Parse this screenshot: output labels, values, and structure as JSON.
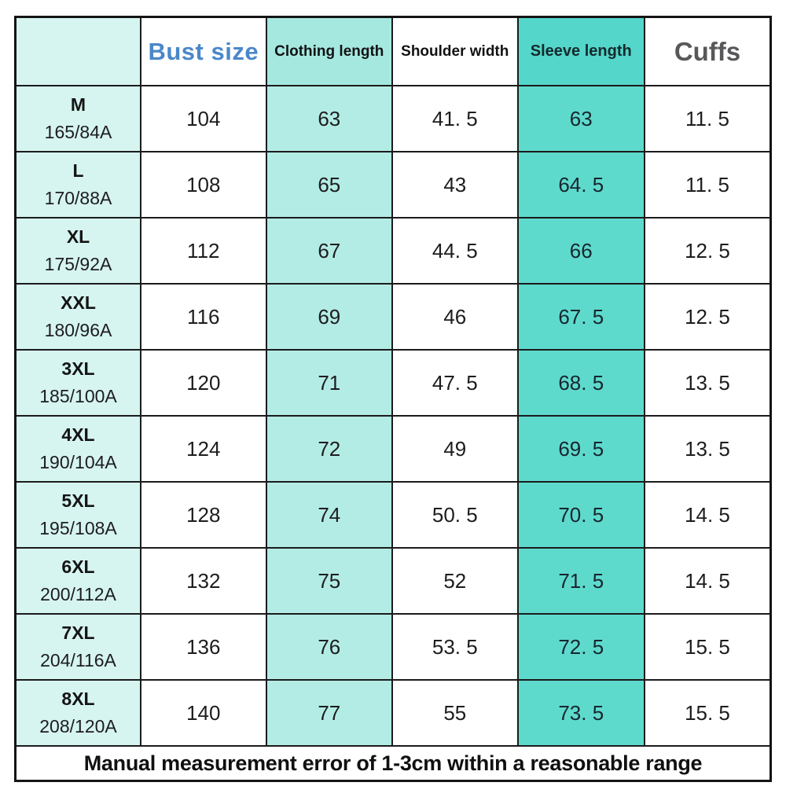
{
  "chart_data": {
    "type": "table",
    "title": "Garment size chart",
    "columns": [
      "",
      "Bust size",
      "Clothing length",
      "Shoulder width",
      "Sleeve length",
      "Cuffs"
    ],
    "rows": [
      [
        "M 165/84A",
        104,
        63,
        41.5,
        63,
        11.5
      ],
      [
        "L 170/88A",
        108,
        65,
        43,
        64.5,
        11.5
      ],
      [
        "XL 175/92A",
        112,
        67,
        44.5,
        66,
        12.5
      ],
      [
        "XXL 180/96A",
        116,
        69,
        46,
        67.5,
        12.5
      ],
      [
        "3XL 185/100A",
        120,
        71,
        47.5,
        68.5,
        13.5
      ],
      [
        "4XL 190/104A",
        124,
        72,
        49,
        69.5,
        13.5
      ],
      [
        "5XL 195/108A",
        128,
        74,
        50.5,
        70.5,
        14.5
      ],
      [
        "6XL 200/112A",
        132,
        75,
        52,
        71.5,
        14.5
      ],
      [
        "7XL 204/116A",
        136,
        76,
        53.5,
        72.5,
        15.5
      ],
      [
        "8XL 208/120A",
        140,
        77,
        55,
        73.5,
        15.5
      ]
    ],
    "footer": "Manual measurement error of 1-3cm within a reasonable range"
  },
  "table": {
    "headers": [
      "",
      "Bust size",
      "Clothing length",
      "Shoulder width",
      "Sleeve length",
      "Cuffs"
    ],
    "rows": [
      {
        "size": "M",
        "spec": "165/84A",
        "bust": "104",
        "clothing_length": "63",
        "shoulder_width": "41. 5",
        "sleeve_length": "63",
        "cuffs": "11. 5"
      },
      {
        "size": "L",
        "spec": "170/88A",
        "bust": "108",
        "clothing_length": "65",
        "shoulder_width": "43",
        "sleeve_length": "64. 5",
        "cuffs": "11. 5"
      },
      {
        "size": "XL",
        "spec": "175/92A",
        "bust": "112",
        "clothing_length": "67",
        "shoulder_width": "44. 5",
        "sleeve_length": "66",
        "cuffs": "12. 5"
      },
      {
        "size": "XXL",
        "spec": "180/96A",
        "bust": "116",
        "clothing_length": "69",
        "shoulder_width": "46",
        "sleeve_length": "67. 5",
        "cuffs": "12. 5"
      },
      {
        "size": "3XL",
        "spec": "185/100A",
        "bust": "120",
        "clothing_length": "71",
        "shoulder_width": "47. 5",
        "sleeve_length": "68. 5",
        "cuffs": "13. 5"
      },
      {
        "size": "4XL",
        "spec": "190/104A",
        "bust": "124",
        "clothing_length": "72",
        "shoulder_width": "49",
        "sleeve_length": "69. 5",
        "cuffs": "13. 5"
      },
      {
        "size": "5XL",
        "spec": "195/108A",
        "bust": "128",
        "clothing_length": "74",
        "shoulder_width": "50. 5",
        "sleeve_length": "70. 5",
        "cuffs": "14. 5"
      },
      {
        "size": "6XL",
        "spec": "200/112A",
        "bust": "132",
        "clothing_length": "75",
        "shoulder_width": "52",
        "sleeve_length": "71. 5",
        "cuffs": "14. 5"
      },
      {
        "size": "7XL",
        "spec": "204/116A",
        "bust": "136",
        "clothing_length": "76",
        "shoulder_width": "53. 5",
        "sleeve_length": "72. 5",
        "cuffs": "15. 5"
      },
      {
        "size": "8XL",
        "spec": "208/120A",
        "bust": "140",
        "clothing_length": "77",
        "shoulder_width": "55",
        "sleeve_length": "73. 5",
        "cuffs": "15. 5"
      }
    ],
    "footer": "Manual measurement error of 1-3cm within a reasonable range"
  },
  "colors": {
    "label_column_bg": "#d6f4f0",
    "clothing_header_bg": "#a5e8e0",
    "clothing_cell_bg": "#b3ece5",
    "sleeve_header_bg": "#54d6ca",
    "sleeve_cell_bg": "#5edacd",
    "bust_header_text": "#4a87c9",
    "cuffs_header_text": "#58585a",
    "body_text": "#1d1d1f",
    "border": "#1b1b1b"
  }
}
